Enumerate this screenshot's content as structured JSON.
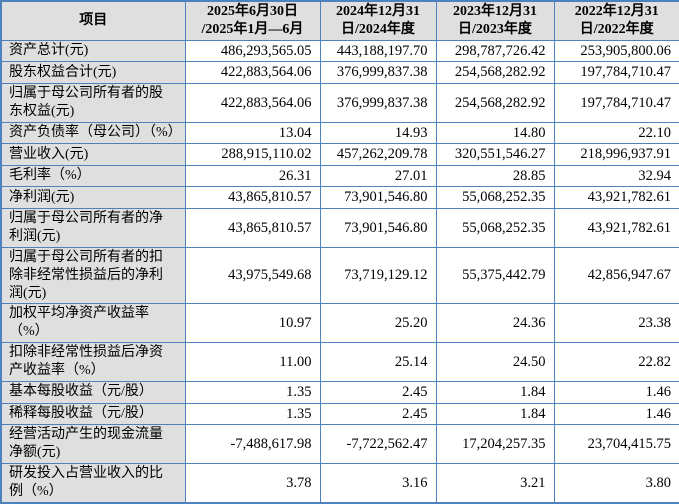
{
  "colors": {
    "border": "#4f81bd",
    "shaded_cell_bg": "#dfdfdf",
    "data_cell_bg": "#ffffff",
    "text": "#000000"
  },
  "table": {
    "header": {
      "item_label": "项目",
      "periods": [
        "2025年6月30日\n/2025年1月—6月",
        "2024年12月31\n日/2024年度",
        "2023年12月31\n日/2023年度",
        "2022年12月31\n日/2022年度"
      ]
    },
    "rows": [
      {
        "label": "资产总计(元)",
        "values": [
          "486,293,565.05",
          "443,188,197.70",
          "298,787,726.42",
          "253,905,800.06"
        ]
      },
      {
        "label": "股东权益合计(元)",
        "values": [
          "422,883,564.06",
          "376,999,837.38",
          "254,568,282.92",
          "197,784,710.47"
        ]
      },
      {
        "label": "归属于母公司所有者的股\n东权益(元)",
        "values": [
          "422,883,564.06",
          "376,999,837.38",
          "254,568,282.92",
          "197,784,710.47"
        ]
      },
      {
        "label": "资产负债率（母公司）（%）",
        "values": [
          "13.04",
          "14.93",
          "14.80",
          "22.10"
        ]
      },
      {
        "label": "营业收入(元)",
        "values": [
          "288,915,110.02",
          "457,262,209.78",
          "320,551,546.27",
          "218,996,937.91"
        ]
      },
      {
        "label": "毛利率（%）",
        "values": [
          "26.31",
          "27.01",
          "28.85",
          "32.94"
        ]
      },
      {
        "label": "净利润(元)",
        "values": [
          "43,865,810.57",
          "73,901,546.80",
          "55,068,252.35",
          "43,921,782.61"
        ]
      },
      {
        "label": "归属于母公司所有者的净\n利润(元)",
        "values": [
          "43,865,810.57",
          "73,901,546.80",
          "55,068,252.35",
          "43,921,782.61"
        ]
      },
      {
        "label": "归属于母公司所有者的扣\n除非经常性损益后的净利\n润(元)",
        "values": [
          "43,975,549.68",
          "73,719,129.12",
          "55,375,442.79",
          "42,856,947.67"
        ]
      },
      {
        "label": "加权平均净资产收益率\n（%）",
        "values": [
          "10.97",
          "25.20",
          "24.36",
          "23.38"
        ]
      },
      {
        "label": "扣除非经常性损益后净资\n产收益率（%）",
        "values": [
          "11.00",
          "25.14",
          "24.50",
          "22.82"
        ]
      },
      {
        "label": "基本每股收益（元/股）",
        "values": [
          "1.35",
          "2.45",
          "1.84",
          "1.46"
        ]
      },
      {
        "label": "稀释每股收益（元/股）",
        "values": [
          "1.35",
          "2.45",
          "1.84",
          "1.46"
        ]
      },
      {
        "label": "经营活动产生的现金流量\n净额(元)",
        "values": [
          "-7,488,617.98",
          "-7,722,562.47",
          "17,204,257.35",
          "23,704,415.75"
        ]
      },
      {
        "label": "研发投入占营业收入的比\n例（%）",
        "values": [
          "3.78",
          "3.16",
          "3.21",
          "3.80"
        ]
      }
    ]
  }
}
